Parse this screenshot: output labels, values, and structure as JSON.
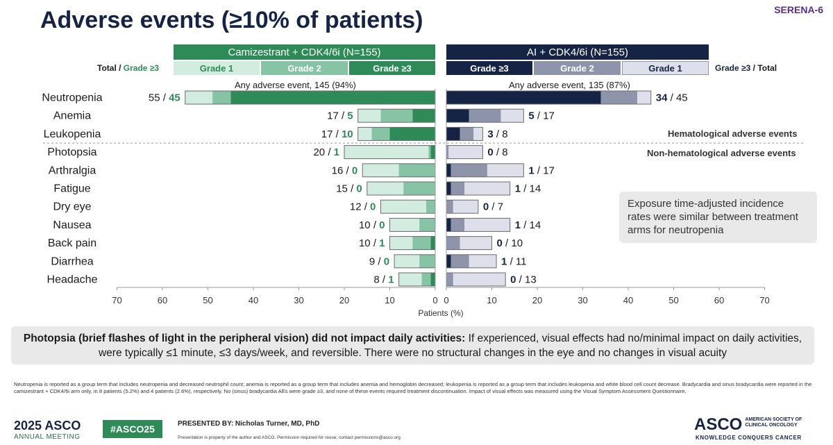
{
  "title": "Adverse events (≥10% of patients)",
  "logo_text": "SERENA-6",
  "arms": {
    "left": {
      "name": "Camizestrant + CDK4/6i (N=155)",
      "grades": [
        "Grade 1",
        "Grade 2",
        "Grade ≥3"
      ],
      "side_label_a": "Total",
      "side_label_b": "Grade ≥3",
      "any_ae": "Any adverse event, 145 (94%)"
    },
    "right": {
      "name": "AI + CDK4/6i (N=155)",
      "grades": [
        "Grade ≥3",
        "Grade 2",
        "Grade 1"
      ],
      "side_label_a": "Grade ≥3",
      "side_label_b": "Total",
      "any_ae": "Any adverse event, 135 (87%)"
    }
  },
  "colors": {
    "left_header": "#2e8b57",
    "left_g1": "#d3ece0",
    "left_g2": "#86c4a5",
    "left_g3": "#2e8b57",
    "right_header": "#152444",
    "right_g1": "#dde0ea",
    "right_g2": "#8e95ab",
    "right_g3": "#152444",
    "left_number": "#2e8b57",
    "right_number": "#152444"
  },
  "sections": {
    "hematological": "Hematological adverse events",
    "non_hematological": "Non-hematological adverse events"
  },
  "chart_data": {
    "type": "bar",
    "orientation": "horizontal-butterfly",
    "xlabel": "Patients (%)",
    "xlim": [
      0,
      70
    ],
    "ticks": [
      0,
      10,
      20,
      30,
      40,
      50,
      60,
      70
    ],
    "tick_labels": [
      "0",
      "10",
      "20",
      "30",
      "40",
      "50",
      "60",
      "70"
    ],
    "categories": [
      "Neutropenia",
      "Anemia",
      "Leukopenia",
      "Photopsia",
      "Arthralgia",
      "Fatigue",
      "Dry eye",
      "Nausea",
      "Back pain",
      "Diarrhea",
      "Headache"
    ],
    "series": [
      {
        "name": "Camizestrant + CDK4/6i",
        "total": [
          55,
          17,
          17,
          20,
          16,
          15,
          12,
          10,
          10,
          9,
          8
        ],
        "grade3": [
          45,
          5,
          10,
          1,
          0,
          0,
          0,
          0,
          1,
          0,
          1
        ],
        "grade2": [
          4,
          7,
          4,
          0.5,
          8,
          7,
          2,
          3.5,
          4,
          3.5,
          2
        ],
        "grade1": [
          6,
          5,
          3,
          18.5,
          8,
          8,
          10,
          6.5,
          5,
          5.5,
          5
        ]
      },
      {
        "name": "AI + CDK4/6i",
        "total": [
          45,
          17,
          8,
          8,
          17,
          14,
          7,
          14,
          10,
          11,
          13
        ],
        "grade3": [
          34,
          5,
          3,
          0,
          1,
          1,
          0,
          1,
          0,
          1,
          0
        ],
        "grade2": [
          8,
          7,
          3,
          0.5,
          8,
          3,
          1.5,
          3,
          3,
          4,
          1.5
        ],
        "grade1": [
          3,
          5,
          2,
          7.5,
          8,
          10,
          5.5,
          10,
          7,
          6,
          11.5
        ]
      }
    ],
    "hematological_count": 3
  },
  "callout": "Exposure time-adjusted incidence rates were similar between treatment arms for neutropenia",
  "photopsia_note": {
    "bold": "Photopsia (brief flashes of light in the peripheral vision) did not impact daily activities:",
    "rest": " If experienced, visual effects had no/minimal impact on daily activities, were typically ≤1 minute, ≤3 days/week, and reversible. There were no structural changes in the eye and no changes in visual acuity"
  },
  "footnote": "Neutropenia is reported as a group term that includes neutropenia and decreased neutrophil count; anemia is reported as a group term that includes anemia and hemoglobin decreased; leukopenia is reported as a group term that includes leukopenia and white blood cell count decrease. Bradycardia and sinus bradycardia were reported in the camizestrant + CDK4/6i arm only, in 8 patients (5.2%) and 4 patients (2.6%), respectively. No (sinus) bradycardia AEs were grade ≥3, and none of these events required treatment discontinuation. Impact of visual effects was measured using the Visual Symptom Assessment Questionnaire.",
  "footer": {
    "year_asco": "2025 ASCO",
    "annual_meeting": "ANNUAL MEETING",
    "hashtag": "#ASCO25",
    "presented_by_label": "PRESENTED BY:",
    "presenter": "Nicholas Turner, MD, PhD",
    "disclaimer": "Presentation is property of the author and ASCO. Permission required for reuse; contact permissions@asco.org",
    "asco": "ASCO",
    "asco_sub": "AMERICAN SOCIETY OF CLINICAL ONCOLOGY",
    "tagline": "KNOWLEDGE CONQUERS CANCER"
  }
}
